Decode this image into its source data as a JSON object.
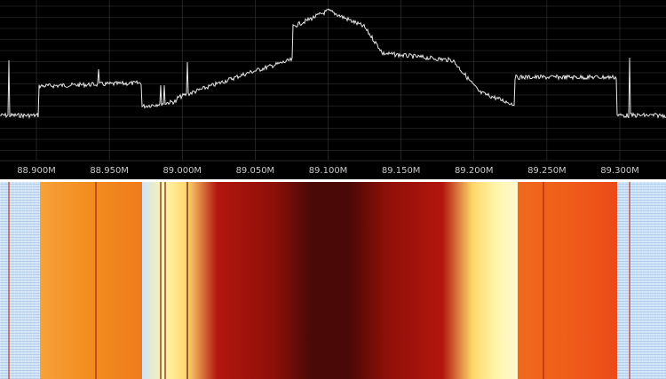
{
  "spectrum": {
    "freq_labels": [
      "88.900M",
      "88.950M",
      "89.000M",
      "89.050M",
      "89.100M",
      "89.150M",
      "89.200M",
      "89.250M",
      "89.300M"
    ],
    "freq_values_mhz": [
      88.9,
      88.95,
      89.0,
      89.05,
      89.1,
      89.15,
      89.2,
      89.25,
      89.3
    ],
    "trace_color": "#e6e6e6",
    "grid_color": "#3a3a3a",
    "label_color": "#c8c8c8"
  },
  "waterfall": {
    "colors": {
      "noise": "#cfe4f7",
      "orange": "#f28c1e",
      "red_orange": "#ef5a1a",
      "yellow": "#fff4a8",
      "red": "#b3160e",
      "dark_red": "#4a0906"
    }
  }
}
